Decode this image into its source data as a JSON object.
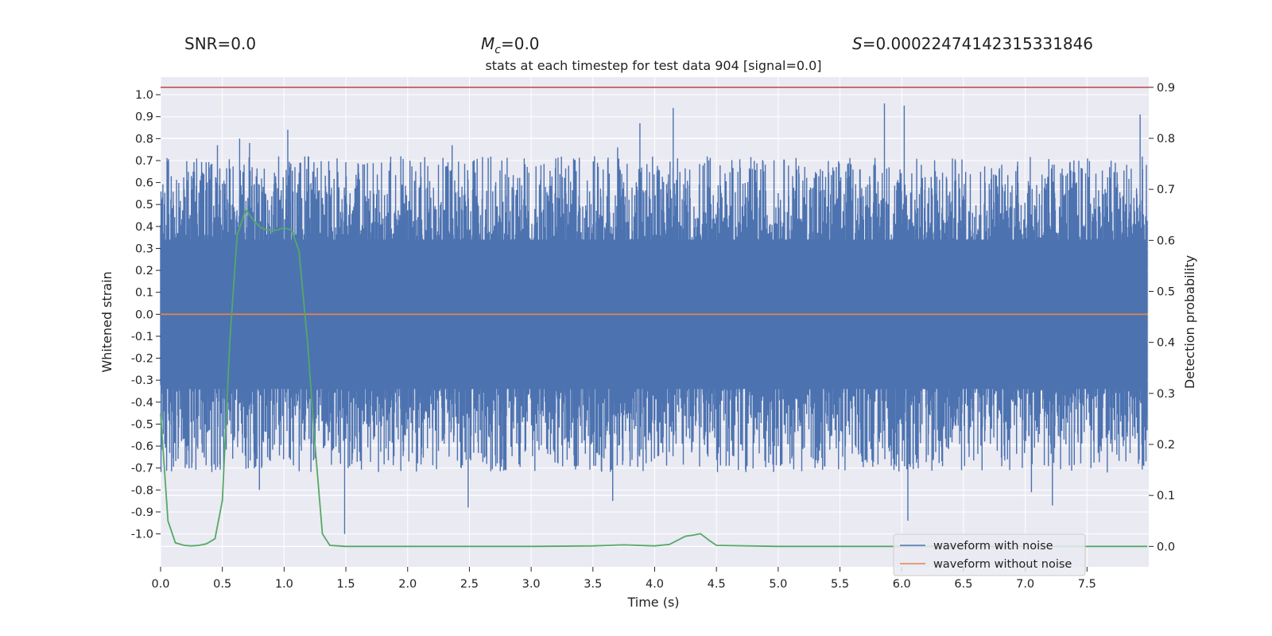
{
  "chart_data": {
    "type": "line",
    "title": "stats at each timestep for test data 904 [signal=0.0]",
    "header": {
      "snr": "SNR=0.0",
      "mc_symbol": "M",
      "mc_sub": "c",
      "mc_value": "=0.0",
      "s_symbol": "S",
      "s_value": "=0.00022474142315331846"
    },
    "xlabel": "Time (s)",
    "ylabel_left": "Whitened strain",
    "ylabel_right": "Detection probability",
    "xlim": [
      0.0,
      8.0
    ],
    "ylim_left": [
      -1.15,
      1.08
    ],
    "ylim_right": [
      -0.04,
      0.92
    ],
    "x_ticks": [
      "0.0",
      "0.5",
      "1.0",
      "1.5",
      "2.0",
      "2.5",
      "3.0",
      "3.5",
      "4.0",
      "4.5",
      "5.0",
      "5.5",
      "6.0",
      "6.5",
      "7.0",
      "7.5"
    ],
    "y_ticks_left": [
      "1.0",
      "0.9",
      "0.8",
      "0.7",
      "0.6",
      "0.5",
      "0.4",
      "0.3",
      "0.2",
      "0.1",
      "0.0",
      "-0.1",
      "-0.2",
      "-0.3",
      "-0.4",
      "-0.5",
      "-0.6",
      "-0.7",
      "-0.8",
      "-0.9",
      "-1.0"
    ],
    "y_ticks_right": [
      "0.9",
      "0.8",
      "0.7",
      "0.6",
      "0.5",
      "0.4",
      "0.3",
      "0.2",
      "0.1",
      "0.0"
    ],
    "threshold": 0.9,
    "series": [
      {
        "name": "waveform with noise",
        "axis": "left",
        "color": "#4c72b0",
        "description_values": {
          "baseline_band": [
            -0.34,
            0.34
          ],
          "spikes": [
            {
              "t": 0.46,
              "v": 0.77
            },
            {
              "t": 0.64,
              "v": 0.8
            },
            {
              "t": 0.72,
              "v": 0.78
            },
            {
              "t": 1.03,
              "v": 0.84
            },
            {
              "t": 2.36,
              "v": 0.77
            },
            {
              "t": 3.7,
              "v": 0.76
            },
            {
              "t": 3.88,
              "v": 0.87
            },
            {
              "t": 4.15,
              "v": 0.94
            },
            {
              "t": 5.86,
              "v": 0.96
            },
            {
              "t": 6.02,
              "v": 0.95
            },
            {
              "t": 7.93,
              "v": 0.91
            },
            {
              "t": 0.8,
              "v": -0.8
            },
            {
              "t": 1.49,
              "v": -1.0
            },
            {
              "t": 2.49,
              "v": -0.88
            },
            {
              "t": 3.66,
              "v": -0.85
            },
            {
              "t": 6.05,
              "v": -0.94
            },
            {
              "t": 7.22,
              "v": -0.87
            },
            {
              "t": 7.05,
              "v": -0.81
            }
          ]
        }
      },
      {
        "name": "waveform without noise",
        "axis": "left",
        "color": "#dd8452",
        "x": [
          0.0,
          7.99
        ],
        "y": [
          0.0,
          0.0
        ]
      },
      {
        "name": "detection probability",
        "axis": "right",
        "color": "#55a868",
        "x": [
          0.0,
          0.06,
          0.12,
          0.19,
          0.25,
          0.31,
          0.37,
          0.44,
          0.5,
          0.56,
          0.62,
          0.69,
          0.75,
          0.81,
          0.87,
          0.94,
          1.0,
          1.06,
          1.12,
          1.19,
          1.25,
          1.31,
          1.37,
          1.44,
          1.5,
          2.0,
          2.5,
          3.0,
          3.5,
          3.75,
          4.0,
          4.12,
          4.25,
          4.31,
          4.37,
          4.44,
          4.5,
          5.0,
          6.0,
          7.0,
          7.99
        ],
        "y": [
          0.26,
          0.05,
          0.007,
          0.002,
          0.001,
          0.002,
          0.005,
          0.015,
          0.09,
          0.4,
          0.61,
          0.66,
          0.64,
          0.625,
          0.62,
          0.62,
          0.625,
          0.62,
          0.58,
          0.4,
          0.2,
          0.025,
          0.002,
          0.001,
          0.0,
          0.0,
          0.0,
          0.0,
          0.001,
          0.003,
          0.001,
          0.004,
          0.02,
          0.022,
          0.025,
          0.012,
          0.002,
          0.0,
          0.0,
          0.0,
          0.0
        ]
      }
    ],
    "legend": {
      "position": "lower-right",
      "entries": [
        {
          "label": "waveform with noise",
          "color": "#4c72b0"
        },
        {
          "label": "waveform without noise",
          "color": "#dd8452"
        }
      ]
    },
    "colors": {
      "background": "#eaeaf2",
      "grid": "#ffffff",
      "threshold": "#c44e52"
    }
  }
}
